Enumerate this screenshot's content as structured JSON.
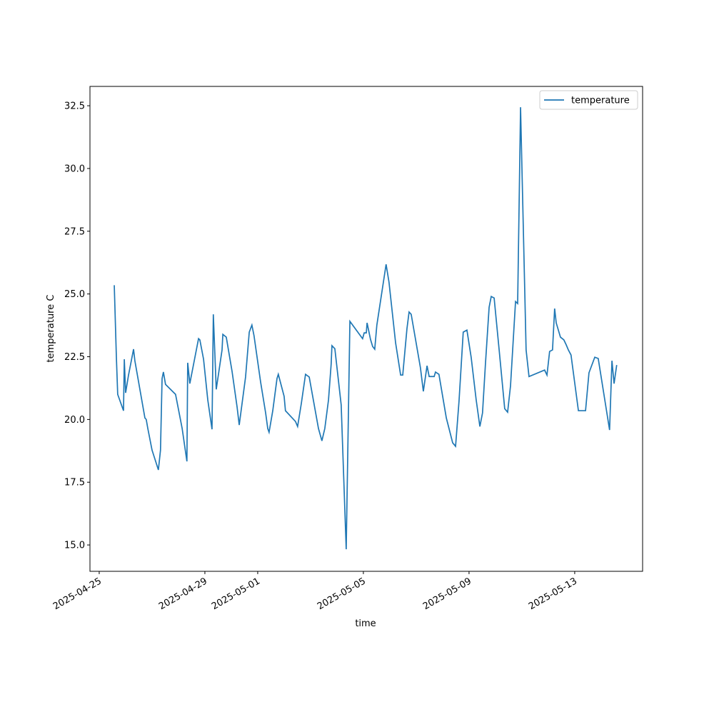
{
  "chart_data": {
    "type": "line",
    "xlabel": "time",
    "ylabel": "temperature C",
    "x": [
      0.57,
      0.65,
      0.7,
      0.92,
      0.95,
      1.0,
      1.11,
      1.3,
      1.35,
      1.73,
      1.78,
      1.84,
      2.0,
      2.24,
      2.32,
      2.38,
      2.43,
      2.51,
      2.89,
      3.14,
      3.32,
      3.35,
      3.43,
      3.76,
      3.81,
      3.95,
      4.11,
      4.27,
      4.32,
      4.43,
      4.65,
      4.68,
      4.81,
      5.03,
      5.22,
      5.3,
      5.54,
      5.68,
      5.78,
      5.86,
      6.11,
      6.3,
      6.38,
      6.43,
      6.57,
      6.73,
      6.78,
      7.0,
      7.05,
      7.43,
      7.51,
      7.65,
      7.81,
      7.95,
      8.3,
      8.43,
      8.54,
      8.68,
      8.78,
      8.81,
      8.92,
      9.16,
      9.35,
      9.49,
      9.97,
      10.03,
      10.11,
      10.14,
      10.27,
      10.35,
      10.43,
      10.51,
      10.86,
      10.97,
      11.22,
      11.41,
      11.49,
      11.65,
      11.73,
      11.81,
      12.16,
      12.27,
      12.41,
      12.49,
      12.68,
      12.73,
      12.86,
      13.14,
      13.38,
      13.49,
      13.62,
      13.78,
      13.92,
      14.08,
      14.27,
      14.41,
      14.51,
      14.62,
      14.76,
      14.84,
      14.95,
      15.14,
      15.35,
      15.46,
      15.57,
      15.76,
      15.84,
      15.95,
      16.16,
      16.27,
      16.86,
      16.95,
      17.05,
      17.16,
      17.24,
      17.3,
      17.46,
      17.59,
      17.68,
      17.76,
      17.86,
      18.14,
      18.41,
      18.54,
      18.76,
      18.89,
      19.32,
      19.41,
      19.49,
      19.59
    ],
    "series": [
      {
        "name": "temperature",
        "color": "#1f77b4",
        "values": [
          25.35,
          22.48,
          21.0,
          20.35,
          22.4,
          21.06,
          21.77,
          22.8,
          22.34,
          20.06,
          20.0,
          19.64,
          18.78,
          17.99,
          18.78,
          21.63,
          21.89,
          21.4,
          21.0,
          19.64,
          18.33,
          22.26,
          21.43,
          23.22,
          23.17,
          22.4,
          20.78,
          19.61,
          24.19,
          21.2,
          22.77,
          23.39,
          23.28,
          21.91,
          20.49,
          19.78,
          21.69,
          23.48,
          23.76,
          23.34,
          21.49,
          20.26,
          19.64,
          19.49,
          20.35,
          21.63,
          21.8,
          20.92,
          20.35,
          19.92,
          19.72,
          20.63,
          21.8,
          21.69,
          19.64,
          19.15,
          19.64,
          20.78,
          22.2,
          22.94,
          22.82,
          20.58,
          14.83,
          23.91,
          23.22,
          23.45,
          23.45,
          23.85,
          23.19,
          22.91,
          22.8,
          23.76,
          26.18,
          25.47,
          23.05,
          21.77,
          21.77,
          23.62,
          24.28,
          24.19,
          22.06,
          21.12,
          22.14,
          21.71,
          21.71,
          21.89,
          21.8,
          20.06,
          19.07,
          18.93,
          20.72,
          23.48,
          23.56,
          22.48,
          20.78,
          19.72,
          20.26,
          22.2,
          24.47,
          24.9,
          24.84,
          22.77,
          20.43,
          20.29,
          21.34,
          24.7,
          24.62,
          32.44,
          22.77,
          21.71,
          21.97,
          21.77,
          22.71,
          22.77,
          24.42,
          23.85,
          23.28,
          23.17,
          22.97,
          22.77,
          22.57,
          20.35,
          20.35,
          21.86,
          22.48,
          22.43,
          19.58,
          22.34,
          21.43,
          22.17
        ]
      }
    ],
    "xlim": [
      -0.35,
      20.57
    ],
    "xticks": [
      {
        "value": 0,
        "label": "2025-04-25"
      },
      {
        "value": 4,
        "label": "2025-04-29"
      },
      {
        "value": 6,
        "label": "2025-05-01"
      },
      {
        "value": 10,
        "label": "2025-05-05"
      },
      {
        "value": 14,
        "label": "2025-05-09"
      },
      {
        "value": 18,
        "label": "2025-05-13"
      }
    ],
    "ylim": [
      13.95,
      33.27
    ],
    "yticks": [
      {
        "value": 15,
        "label": "15.0"
      },
      {
        "value": 17.5,
        "label": "17.5"
      },
      {
        "value": 20,
        "label": "20.0"
      },
      {
        "value": 22.5,
        "label": "22.5"
      },
      {
        "value": 25,
        "label": "25.0"
      },
      {
        "value": 27.5,
        "label": "27.5"
      },
      {
        "value": 30,
        "label": "30.0"
      },
      {
        "value": 32.5,
        "label": "32.5"
      }
    ],
    "legend": "upper right"
  }
}
